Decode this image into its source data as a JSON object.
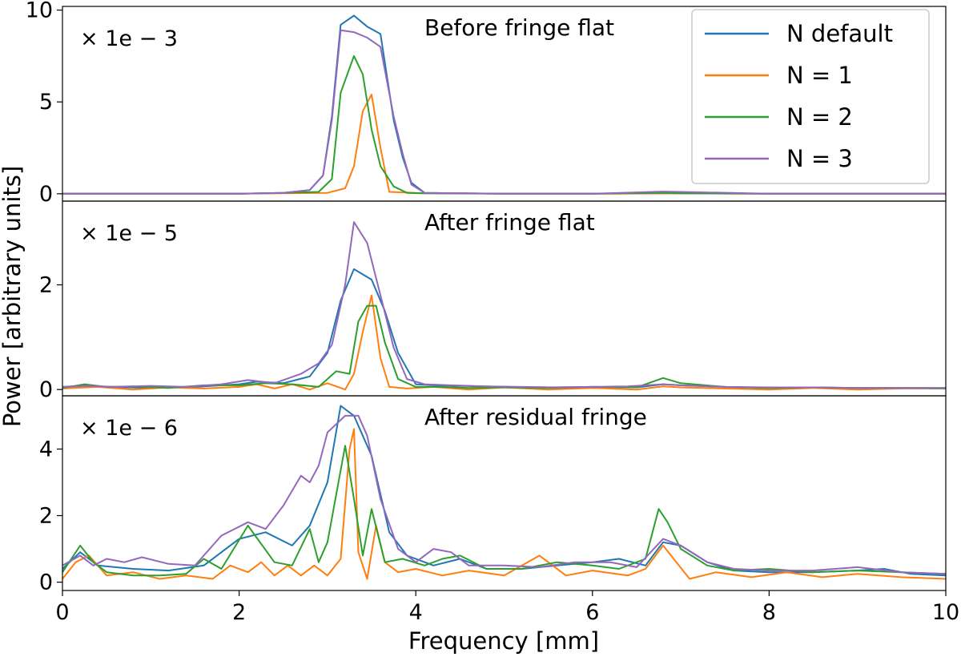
{
  "chart_data": {
    "type": "line",
    "xlabel": "Frequency [mm]",
    "ylabel": "Power [arbitrary units]",
    "xlim": [
      0,
      10
    ],
    "xticks": [
      0,
      2,
      4,
      6,
      8,
      10
    ],
    "legend": {
      "placement": "top-right",
      "entries": [
        "N default",
        "N = 1",
        "N = 2",
        "N = 3"
      ]
    },
    "series_colors": {
      "N default": "#1f77b4",
      "N = 1": "#ff7f0e",
      "N = 2": "#2ca02c",
      "N = 3": "#9467bd"
    },
    "panels": [
      {
        "title": "Before fringe flat",
        "scale_label": "× 1e − 3",
        "ylim": [
          -0.4,
          10.2
        ],
        "yticks": [
          0,
          5,
          10
        ],
        "series": [
          {
            "name": "N default",
            "x": [
              0,
              1,
              2,
              2.5,
              2.8,
              2.95,
              3.05,
              3.15,
              3.3,
              3.45,
              3.6,
              3.75,
              3.85,
              3.95,
              4.1,
              5,
              6,
              6.8,
              7,
              8,
              9,
              10
            ],
            "y": [
              0,
              0,
              0,
              0.05,
              0.2,
              1,
              4.2,
              9.2,
              9.7,
              9.1,
              8.7,
              4,
              2,
              0.6,
              0.05,
              0,
              0,
              0.08,
              0.05,
              0,
              0,
              0
            ]
          },
          {
            "name": "N = 1",
            "x": [
              0,
              1,
              2,
              3,
              3.2,
              3.3,
              3.4,
              3.5,
              3.6,
              3.7,
              4,
              5,
              6,
              7,
              8,
              9,
              10
            ],
            "y": [
              0,
              0,
              0,
              0.05,
              0.3,
              1.5,
              4.5,
              5.4,
              2.5,
              0.1,
              0.05,
              0,
              0,
              0.02,
              0,
              0,
              0
            ]
          },
          {
            "name": "N = 2",
            "x": [
              0,
              1,
              2,
              2.5,
              2.9,
              3.05,
              3.15,
              3.3,
              3.4,
              3.5,
              3.6,
              3.75,
              3.9,
              4.1,
              5,
              6,
              6.8,
              7,
              8,
              9,
              10
            ],
            "y": [
              0,
              0,
              0,
              0.05,
              0.1,
              0.8,
              5.5,
              7.5,
              6.5,
              3.5,
              1.5,
              0.4,
              0.05,
              0.02,
              0,
              0,
              0.05,
              0.02,
              0,
              0,
              0
            ]
          },
          {
            "name": "N = 3",
            "x": [
              0,
              1,
              2,
              2.5,
              2.8,
              2.95,
              3.05,
              3.15,
              3.3,
              3.45,
              3.6,
              3.75,
              3.85,
              3.95,
              4.1,
              5,
              6,
              6.8,
              7,
              8,
              9,
              10
            ],
            "y": [
              0,
              0,
              0,
              0.05,
              0.2,
              1,
              4,
              8.9,
              8.8,
              8.5,
              8,
              4.2,
              2.2,
              0.5,
              0.05,
              0,
              0,
              0.12,
              0.1,
              0,
              0,
              0
            ]
          }
        ]
      },
      {
        "title": "After fringe flat",
        "scale_label": "× 1e − 5",
        "ylim": [
          -0.12,
          3.6
        ],
        "yticks": [
          0,
          2
        ],
        "series": [
          {
            "name": "N default",
            "x": [
              0,
              0.3,
              0.5,
              1,
              1.5,
              2,
              2.2,
              2.5,
              2.8,
              3.0,
              3.15,
              3.3,
              3.5,
              3.65,
              3.8,
              4.0,
              4.2,
              4.5,
              5,
              5.5,
              6,
              6.5,
              6.8,
              7,
              7.5,
              8,
              8.5,
              9,
              9.5,
              10
            ],
            "y": [
              0.05,
              0.08,
              0.05,
              0.03,
              0.05,
              0.1,
              0.15,
              0.12,
              0.25,
              0.7,
              1.7,
              2.3,
              2.1,
              1.5,
              0.7,
              0.1,
              0.08,
              0.07,
              0.05,
              0.04,
              0.05,
              0.04,
              0.1,
              0.08,
              0.05,
              0.03,
              0.04,
              0.03,
              0.03,
              0.03
            ]
          },
          {
            "name": "N = 1",
            "x": [
              0,
              0.4,
              0.8,
              1.2,
              1.6,
              2.0,
              2.2,
              2.4,
              2.6,
              2.8,
              3.0,
              3.2,
              3.3,
              3.4,
              3.5,
              3.6,
              3.7,
              3.9,
              4.2,
              4.6,
              5,
              5.5,
              6,
              6.5,
              6.8,
              7,
              7.5,
              8,
              8.5,
              9,
              9.5,
              10
            ],
            "y": [
              0.02,
              0.05,
              0.0,
              0.04,
              0.02,
              0.05,
              0.1,
              0.02,
              0.1,
              0.0,
              0.12,
              0.0,
              0.3,
              1.1,
              1.8,
              0.6,
              0.05,
              0.02,
              0.05,
              0.0,
              0.04,
              0.0,
              0.03,
              0.0,
              0.06,
              0.04,
              0.02,
              0.0,
              0.03,
              0.0,
              0.02,
              0.02
            ]
          },
          {
            "name": "N = 2",
            "x": [
              0,
              0.25,
              0.5,
              0.8,
              1.2,
              1.6,
              2.0,
              2.3,
              2.6,
              2.9,
              3.1,
              3.25,
              3.35,
              3.45,
              3.55,
              3.65,
              3.8,
              4.0,
              4.3,
              4.6,
              5,
              5.5,
              6,
              6.5,
              6.8,
              7,
              7.5,
              8,
              8.5,
              9,
              9.5,
              10
            ],
            "y": [
              0.03,
              0.1,
              0.05,
              0.06,
              0.03,
              0.08,
              0.08,
              0.12,
              0.1,
              0.05,
              0.35,
              0.3,
              1.3,
              1.6,
              1.6,
              0.9,
              0.2,
              0.05,
              0.05,
              0.03,
              0.04,
              0.03,
              0.05,
              0.04,
              0.22,
              0.12,
              0.05,
              0.03,
              0.04,
              0.03,
              0.03,
              0.02
            ]
          },
          {
            "name": "N = 3",
            "x": [
              0,
              0.3,
              0.6,
              1.0,
              1.4,
              1.8,
              2.1,
              2.4,
              2.7,
              2.9,
              3.05,
              3.2,
              3.3,
              3.45,
              3.6,
              3.75,
              3.9,
              4.1,
              4.4,
              4.8,
              5.2,
              5.6,
              6,
              6.4,
              6.8,
              7,
              7.5,
              8,
              8.5,
              9,
              9.5,
              10
            ],
            "y": [
              0.05,
              0.07,
              0.05,
              0.07,
              0.05,
              0.1,
              0.18,
              0.12,
              0.3,
              0.5,
              0.85,
              2.0,
              3.2,
              2.8,
              1.8,
              0.8,
              0.2,
              0.1,
              0.08,
              0.06,
              0.05,
              0.04,
              0.05,
              0.06,
              0.1,
              0.08,
              0.05,
              0.04,
              0.04,
              0.03,
              0.03,
              0.03
            ]
          }
        ]
      },
      {
        "title": "After residual fringe",
        "scale_label": "× 1e − 6",
        "ylim": [
          -0.25,
          5.6
        ],
        "yticks": [
          0,
          2,
          4
        ],
        "series": [
          {
            "name": "N default",
            "x": [
              0,
              0.2,
              0.4,
              0.8,
              1.2,
              1.6,
              2.0,
              2.3,
              2.6,
              2.8,
              3.0,
              3.15,
              3.3,
              3.5,
              3.7,
              3.9,
              4.2,
              4.5,
              4.8,
              5.2,
              5.6,
              6.0,
              6.3,
              6.6,
              6.8,
              7.0,
              7.3,
              7.6,
              8.0,
              8.5,
              9.0,
              9.3,
              9.6,
              10
            ],
            "y": [
              0.4,
              0.9,
              0.5,
              0.4,
              0.35,
              0.5,
              1.3,
              1.5,
              1.1,
              1.7,
              3.0,
              5.3,
              5.0,
              3.8,
              1.5,
              0.8,
              0.5,
              0.7,
              0.4,
              0.4,
              0.5,
              0.6,
              0.7,
              0.5,
              1.2,
              1.1,
              0.6,
              0.35,
              0.3,
              0.3,
              0.35,
              0.4,
              0.25,
              0.2
            ]
          },
          {
            "name": "N = 1",
            "x": [
              0,
              0.15,
              0.3,
              0.5,
              0.8,
              1.1,
              1.4,
              1.7,
              1.9,
              2.1,
              2.25,
              2.4,
              2.55,
              2.7,
              2.85,
              3.0,
              3.15,
              3.25,
              3.3,
              3.35,
              3.45,
              3.55,
              3.65,
              3.8,
              4.0,
              4.3,
              4.6,
              5.0,
              5.4,
              5.7,
              6.0,
              6.4,
              6.6,
              6.8,
              6.95,
              7.1,
              7.4,
              7.8,
              8.2,
              8.6,
              9.0,
              9.5,
              10
            ],
            "y": [
              0.1,
              0.6,
              0.8,
              0.2,
              0.3,
              0.1,
              0.2,
              0.1,
              0.5,
              0.3,
              0.6,
              0.2,
              0.5,
              0.2,
              0.5,
              0.2,
              0.7,
              4.0,
              4.6,
              0.9,
              0.1,
              1.7,
              0.6,
              0.3,
              0.4,
              0.2,
              0.35,
              0.2,
              0.8,
              0.2,
              0.35,
              0.2,
              0.4,
              1.1,
              0.6,
              0.1,
              0.3,
              0.15,
              0.3,
              0.15,
              0.25,
              0.15,
              0.1
            ]
          },
          {
            "name": "N = 2",
            "x": [
              0,
              0.2,
              0.35,
              0.5,
              0.8,
              1.1,
              1.4,
              1.6,
              1.8,
              2.1,
              2.4,
              2.6,
              2.8,
              2.9,
              3.0,
              3.2,
              3.3,
              3.4,
              3.5,
              3.65,
              3.85,
              4.1,
              4.3,
              4.5,
              4.8,
              5.2,
              5.6,
              6.0,
              6.3,
              6.6,
              6.75,
              6.85,
              7.0,
              7.3,
              7.6,
              8.0,
              8.5,
              9.0,
              9.5,
              10
            ],
            "y": [
              0.3,
              1.1,
              0.6,
              0.3,
              0.2,
              0.2,
              0.25,
              0.7,
              0.4,
              1.7,
              0.6,
              0.5,
              1.6,
              0.6,
              1.2,
              4.1,
              2.5,
              0.8,
              2.2,
              0.6,
              0.7,
              0.5,
              0.7,
              0.8,
              0.4,
              0.4,
              0.6,
              0.5,
              0.4,
              0.7,
              2.2,
              1.8,
              1.0,
              0.5,
              0.35,
              0.4,
              0.3,
              0.35,
              0.3,
              0.25
            ]
          },
          {
            "name": "N = 3",
            "x": [
              0,
              0.2,
              0.35,
              0.5,
              0.7,
              0.9,
              1.2,
              1.5,
              1.8,
              2.1,
              2.3,
              2.5,
              2.7,
              2.8,
              2.9,
              3.0,
              3.2,
              3.35,
              3.45,
              3.6,
              3.8,
              4.0,
              4.2,
              4.4,
              4.6,
              5.0,
              5.4,
              5.8,
              6.2,
              6.5,
              6.8,
              7.0,
              7.3,
              7.6,
              8.0,
              8.5,
              9.0,
              9.5,
              10
            ],
            "y": [
              0.5,
              0.8,
              0.5,
              0.7,
              0.6,
              0.75,
              0.55,
              0.5,
              1.4,
              1.8,
              1.6,
              2.3,
              3.2,
              3.0,
              3.5,
              4.5,
              5.0,
              5.0,
              4.4,
              2.5,
              1.0,
              0.6,
              1.0,
              0.9,
              0.5,
              0.5,
              0.45,
              0.6,
              0.6,
              0.45,
              1.3,
              1.1,
              0.6,
              0.4,
              0.35,
              0.35,
              0.45,
              0.3,
              0.25
            ]
          }
        ]
      }
    ]
  }
}
